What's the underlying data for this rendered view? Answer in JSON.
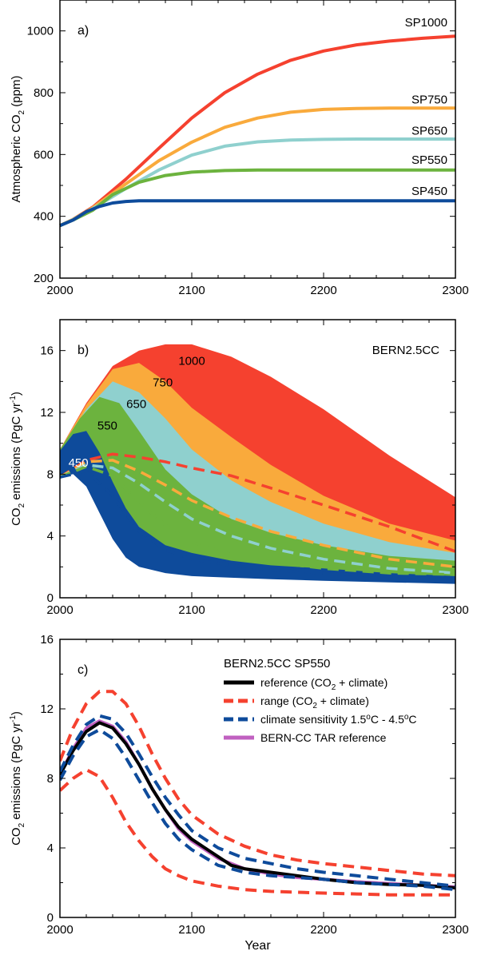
{
  "colors": {
    "sp1000": "#f5412f",
    "sp750": "#f9aa3c",
    "sp650": "#8fd0ce",
    "sp550": "#6cb33e",
    "sp450": "#0e4b9b",
    "reference": "#000000",
    "range": "#f5412f",
    "sensitivity": "#0e4b9b",
    "tar": "#c060c0"
  },
  "chart_data": [
    {
      "type": "line",
      "panel_label": "a)",
      "ylabel": "Atmospheric CO",
      "ylabel_sub": "2",
      "ylabel_unit": " (ppm)",
      "xlabel": "",
      "xlim": [
        2000,
        2300
      ],
      "ylim": [
        200,
        1100
      ],
      "xticks": [
        2000,
        2100,
        2200,
        2300
      ],
      "yticks": [
        200,
        400,
        600,
        800,
        1000
      ],
      "series": [
        {
          "name": "SP1000",
          "key": "sp1000",
          "x": [
            2000,
            2010,
            2025,
            2050,
            2075,
            2100,
            2125,
            2150,
            2175,
            2200,
            2225,
            2250,
            2275,
            2300
          ],
          "y": [
            370,
            390,
            430,
            520,
            620,
            718,
            800,
            860,
            905,
            935,
            955,
            967,
            976,
            983
          ]
        },
        {
          "name": "SP750",
          "key": "sp750",
          "x": [
            2000,
            2010,
            2025,
            2050,
            2075,
            2100,
            2125,
            2150,
            2175,
            2200,
            2225,
            2250,
            2275,
            2300
          ],
          "y": [
            370,
            390,
            428,
            505,
            580,
            640,
            688,
            718,
            737,
            746,
            749,
            750,
            750,
            750
          ]
        },
        {
          "name": "SP650",
          "key": "sp650",
          "x": [
            2000,
            2010,
            2025,
            2050,
            2075,
            2100,
            2125,
            2150,
            2175,
            2200,
            2225,
            2250,
            2275,
            2300
          ],
          "y": [
            370,
            389,
            425,
            490,
            550,
            598,
            627,
            641,
            647,
            649,
            650,
            650,
            650,
            650
          ]
        },
        {
          "name": "SP550",
          "key": "sp550",
          "x": [
            2000,
            2010,
            2025,
            2040,
            2060,
            2080,
            2100,
            2125,
            2150,
            2200,
            2250,
            2300
          ],
          "y": [
            370,
            388,
            420,
            470,
            510,
            532,
            543,
            548,
            550,
            550,
            550,
            550
          ]
        },
        {
          "name": "SP450",
          "key": "sp450",
          "x": [
            2000,
            2010,
            2020,
            2030,
            2040,
            2050,
            2060,
            2100,
            2150,
            2200,
            2250,
            2300
          ],
          "y": [
            370,
            388,
            415,
            432,
            443,
            448,
            450,
            450,
            450,
            450,
            450,
            450
          ]
        }
      ]
    },
    {
      "type": "area",
      "panel_label": "b)",
      "annotation": "BERN2.5CC",
      "ylabel": "CO",
      "ylabel_sub": "2",
      "ylabel_unit": " emissions (PgC yr",
      "ylabel_sup": "-1",
      "ylabel_close": ")",
      "xlabel": "",
      "xlim": [
        2000,
        2300
      ],
      "ylim": [
        0,
        18
      ],
      "xticks": [
        2000,
        2100,
        2200,
        2300
      ],
      "yticks": [
        0,
        4,
        8,
        12,
        16
      ],
      "bands": [
        {
          "name": "1000",
          "key": "sp1000",
          "label_x": 2100,
          "label_y": 15.4,
          "x": [
            2000,
            2020,
            2040,
            2060,
            2080,
            2100,
            2130,
            2160,
            2200,
            2250,
            2300
          ],
          "upper": [
            9.6,
            12.6,
            15.0,
            16.0,
            16.4,
            16.4,
            15.6,
            14.3,
            12.2,
            9.2,
            6.5
          ],
          "lower": [
            7.8,
            8.6,
            8.9,
            8.0,
            6.8,
            5.8,
            5.1,
            4.4,
            3.6,
            2.8,
            2.0
          ]
        },
        {
          "name": "750",
          "key": "sp750",
          "label_x": 2078,
          "label_y": 14.0,
          "x": [
            2000,
            2020,
            2040,
            2060,
            2080,
            2100,
            2130,
            2160,
            2200,
            2250,
            2300
          ],
          "upper": [
            9.6,
            12.5,
            14.8,
            15.2,
            14.0,
            12.3,
            10.4,
            8.6,
            6.6,
            4.8,
            3.7
          ],
          "lower": [
            7.8,
            8.6,
            8.6,
            7.0,
            5.5,
            4.4,
            3.4,
            2.8,
            2.3,
            1.7,
            1.4
          ]
        },
        {
          "name": "650",
          "key": "sp650",
          "label_x": 2058,
          "label_y": 12.6,
          "x": [
            2000,
            2020,
            2040,
            2060,
            2080,
            2100,
            2130,
            2160,
            2200,
            2250,
            2300
          ],
          "upper": [
            9.6,
            12.2,
            14.0,
            13.3,
            11.6,
            9.6,
            7.6,
            6.2,
            4.8,
            3.6,
            2.9
          ],
          "lower": [
            7.8,
            8.6,
            8.3,
            6.4,
            4.8,
            3.8,
            3.0,
            2.4,
            1.9,
            1.4,
            1.1
          ]
        },
        {
          "name": "550",
          "key": "sp550",
          "label_x": 2036,
          "label_y": 11.2,
          "x": [
            2000,
            2015,
            2030,
            2045,
            2060,
            2080,
            2100,
            2130,
            2160,
            2200,
            2250,
            2300
          ],
          "upper": [
            9.6,
            11.6,
            13.0,
            12.6,
            10.8,
            8.3,
            6.7,
            5.1,
            4.2,
            3.4,
            2.7,
            2.4
          ],
          "lower": [
            7.8,
            8.5,
            8.0,
            6.2,
            4.6,
            3.3,
            2.5,
            2.0,
            1.6,
            1.3,
            1.1,
            1.0
          ]
        },
        {
          "name": "450",
          "key": "sp450",
          "label_x": 2014,
          "label_y": 8.8,
          "x": [
            2000,
            2010,
            2020,
            2030,
            2040,
            2050,
            2060,
            2080,
            2100,
            2130,
            2160,
            2200,
            2250,
            2300
          ],
          "upper": [
            9.5,
            10.6,
            10.8,
            9.4,
            7.5,
            5.8,
            4.6,
            3.4,
            2.9,
            2.4,
            2.1,
            1.9,
            1.6,
            1.4
          ],
          "lower": [
            7.8,
            8.0,
            7.2,
            5.5,
            3.8,
            2.6,
            2.0,
            1.6,
            1.4,
            1.3,
            1.2,
            1.1,
            1.0,
            0.9
          ]
        }
      ],
      "dashed_series": [
        {
          "name": "1000",
          "key": "sp1000",
          "x": [
            2000,
            2020,
            2040,
            2060,
            2080,
            2100,
            2130,
            2160,
            2200,
            2250,
            2300
          ],
          "y": [
            7.8,
            8.9,
            9.3,
            9.1,
            8.8,
            8.4,
            7.9,
            7.1,
            6.0,
            4.6,
            3.0
          ]
        },
        {
          "name": "750",
          "key": "sp750",
          "x": [
            2000,
            2020,
            2040,
            2060,
            2080,
            2100,
            2130,
            2160,
            2200,
            2250,
            2300
          ],
          "y": [
            7.8,
            8.8,
            8.9,
            8.2,
            7.3,
            6.3,
            5.2,
            4.3,
            3.4,
            2.5,
            2.0
          ]
        },
        {
          "name": "650",
          "key": "sp650",
          "x": [
            2000,
            2020,
            2040,
            2060,
            2080,
            2100,
            2130,
            2160,
            2200,
            2250,
            2300
          ],
          "y": [
            7.8,
            8.6,
            8.4,
            7.4,
            6.2,
            5.1,
            4.0,
            3.2,
            2.5,
            1.9,
            1.6
          ]
        },
        {
          "name": "550",
          "key": "sp550",
          "x": [
            2000,
            2020,
            2040,
            2060,
            2080,
            2100,
            2130,
            2160,
            2200,
            2250,
            2300
          ],
          "y": [
            7.8,
            8.5,
            7.9,
            6.2,
            4.7,
            3.6,
            2.8,
            2.3,
            1.9,
            1.6,
            1.5
          ]
        },
        {
          "name": "450",
          "key": "sp450",
          "x": [
            2000,
            2020,
            2040,
            2060,
            2080,
            2100,
            2130,
            2160,
            2200,
            2250,
            2300
          ],
          "y": [
            7.8,
            8.2,
            6.6,
            4.3,
            3.1,
            2.5,
            2.1,
            1.8,
            1.6,
            1.4,
            1.3
          ]
        }
      ]
    },
    {
      "type": "line",
      "panel_label": "c)",
      "ylabel": "CO",
      "ylabel_sub": "2",
      "ylabel_unit": " emissions (PgC yr",
      "ylabel_sup": "-1",
      "ylabel_close": ")",
      "xlabel": "Year",
      "xlim": [
        2000,
        2300
      ],
      "ylim": [
        0,
        16
      ],
      "xticks": [
        2000,
        2100,
        2200,
        2300
      ],
      "yticks": [
        0,
        4,
        8,
        12,
        16
      ],
      "legend_title": "BERN2.5CC SP550",
      "legend": [
        {
          "key": "reference",
          "dash": false,
          "parts": [
            "reference (CO",
            "2",
            " + climate)"
          ],
          "kinds": [
            "t",
            "sub",
            "t"
          ]
        },
        {
          "key": "range",
          "dash": true,
          "parts": [
            "range (CO",
            "2",
            " + climate)"
          ],
          "kinds": [
            "t",
            "sub",
            "t"
          ]
        },
        {
          "key": "sensitivity",
          "dash": true,
          "parts": [
            "climate sensitivity 1.5",
            "o",
            "C - 4.5",
            "o",
            "C"
          ],
          "kinds": [
            "t",
            "sup",
            "t",
            "sup",
            "t"
          ]
        },
        {
          "key": "tar",
          "dash": false,
          "parts": [
            "BERN-CC TAR reference"
          ],
          "kinds": [
            "t"
          ]
        }
      ],
      "series": [
        {
          "name": "BERN-CC TAR reference",
          "key": "tar",
          "dash": false,
          "x": [
            2000,
            2010,
            2020,
            2030,
            2040,
            2050,
            2060,
            2070,
            2080,
            2090,
            2100,
            2120,
            2140,
            2160,
            2180,
            2200,
            2225,
            2250,
            2275,
            2300
          ],
          "y": [
            8.2,
            9.7,
            10.9,
            11.3,
            11.0,
            10.1,
            8.8,
            7.4,
            6.2,
            5.1,
            4.4,
            3.4,
            2.8,
            2.5,
            2.3,
            2.2,
            2.05,
            1.95,
            1.85,
            1.75
          ]
        },
        {
          "name": "reference (CO2 + climate)",
          "key": "reference",
          "dash": false,
          "x": [
            2000,
            2010,
            2020,
            2030,
            2040,
            2050,
            2060,
            2070,
            2080,
            2090,
            2100,
            2110,
            2120,
            2130,
            2140,
            2160,
            2180,
            2200,
            2225,
            2250,
            2275,
            2300
          ],
          "y": [
            8.2,
            9.6,
            10.7,
            11.2,
            10.9,
            10.0,
            8.8,
            7.4,
            6.2,
            5.2,
            4.5,
            4.0,
            3.5,
            3.0,
            2.8,
            2.6,
            2.4,
            2.2,
            2.0,
            1.9,
            1.85,
            1.7
          ]
        },
        {
          "name": "range upper",
          "key": "range",
          "dash": true,
          "x": [
            2000,
            2010,
            2020,
            2030,
            2040,
            2050,
            2060,
            2070,
            2080,
            2090,
            2100,
            2120,
            2140,
            2160,
            2180,
            2200,
            2225,
            2250,
            2275,
            2300
          ],
          "y": [
            9.0,
            10.9,
            12.3,
            13.0,
            13.0,
            12.3,
            11.0,
            9.4,
            8.0,
            6.8,
            5.9,
            4.8,
            4.1,
            3.6,
            3.3,
            3.1,
            2.9,
            2.7,
            2.5,
            2.4
          ]
        },
        {
          "name": "range lower",
          "key": "range",
          "dash": true,
          "x": [
            2000,
            2010,
            2020,
            2030,
            2040,
            2050,
            2060,
            2070,
            2080,
            2090,
            2100,
            2120,
            2140,
            2160,
            2180,
            2200,
            2225,
            2250,
            2275,
            2300
          ],
          "y": [
            7.3,
            8.0,
            8.5,
            8.1,
            6.9,
            5.5,
            4.4,
            3.5,
            2.8,
            2.4,
            2.1,
            1.8,
            1.6,
            1.5,
            1.45,
            1.4,
            1.35,
            1.3,
            1.3,
            1.3
          ]
        },
        {
          "name": "sensitivity high",
          "key": "sensitivity",
          "dash": true,
          "x": [
            2000,
            2010,
            2020,
            2030,
            2040,
            2050,
            2060,
            2070,
            2080,
            2090,
            2100,
            2120,
            2140,
            2160,
            2180,
            2200,
            2225,
            2250,
            2275,
            2300
          ],
          "y": [
            8.4,
            9.9,
            11.1,
            11.6,
            11.4,
            10.6,
            9.4,
            8.1,
            6.9,
            5.9,
            5.0,
            4.0,
            3.4,
            3.1,
            2.8,
            2.6,
            2.4,
            2.2,
            2.0,
            1.8
          ]
        },
        {
          "name": "sensitivity low",
          "key": "sensitivity",
          "dash": true,
          "x": [
            2000,
            2010,
            2020,
            2030,
            2040,
            2050,
            2060,
            2070,
            2080,
            2090,
            2100,
            2120,
            2140,
            2160,
            2180,
            2200,
            2225,
            2250,
            2275,
            2300
          ],
          "y": [
            7.9,
            9.3,
            10.4,
            10.8,
            10.3,
            9.2,
            7.9,
            6.6,
            5.4,
            4.5,
            3.9,
            3.0,
            2.6,
            2.4,
            2.3,
            2.2,
            2.0,
            1.9,
            1.8,
            1.6
          ]
        }
      ]
    }
  ]
}
